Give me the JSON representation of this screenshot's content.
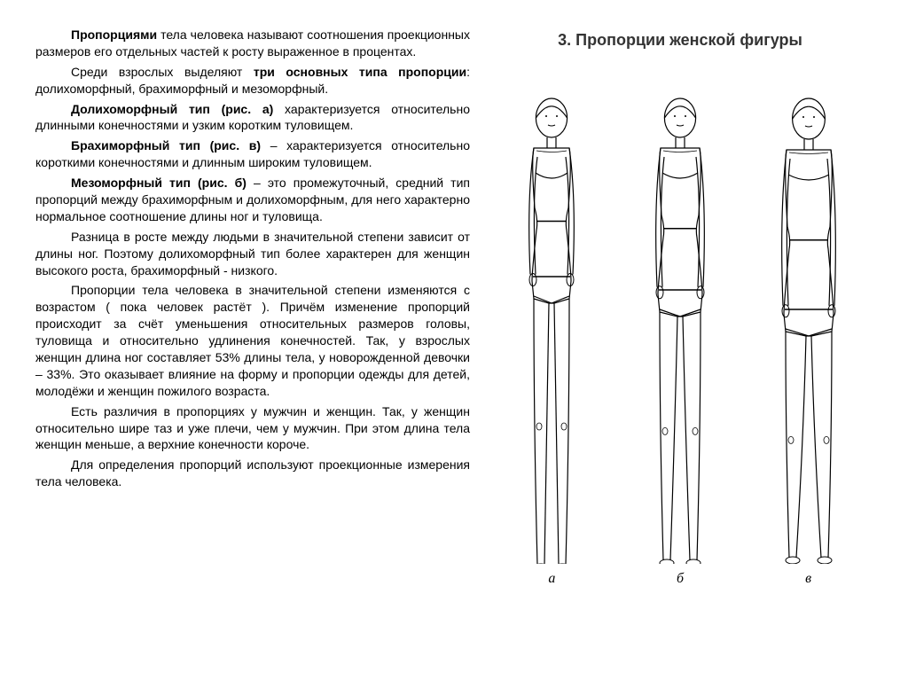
{
  "heading": "3. Пропорции женской фигуры",
  "paragraphs": [
    {
      "prefix_bold": "Пропорциями",
      "rest": " тела человека называют соотношения проекционных размеров его отдельных частей к росту выраженное в процентах."
    },
    {
      "prefix_plain": "Среди взрослых выделяют ",
      "mid_bold": "три основных типа пропорции",
      "rest": ": долихоморфный, брахиморфный и мезоморфный."
    },
    {
      "prefix_bold": "Долихоморфный тип (рис. а)",
      "rest": " характеризуется относительно длинными конечностями и узким коротким туловищем."
    },
    {
      "prefix_bold": "Брахиморфный тип (рис. в)",
      "rest": " – характеризуется относительно короткими конечностями и длинным широким туловищем."
    },
    {
      "prefix_bold": "Мезоморфный тип (рис. б)",
      "rest": " – это промежуточный, средний тип пропорций между брахиморфным и долихоморфным, для него характерно нормальное соотношение длины ног и туловища."
    },
    {
      "rest": "Разница в росте между людьми в значительной степени зависит от длины ног. Поэтому долихоморфный тип более характерен для женщин высокого роста, брахиморфный - низкого."
    },
    {
      "rest": "Пропорции тела человека в значительной степени изменяются с возрастом ( пока человек растёт ). Причём изменение пропорций происходит за счёт уменьшения относительных размеров головы, туловища и относительно удлинения конечностей. Так, у взрослых женщин длина ног составляет 53% длины тела, у новорожденной девочки – 33%. Это оказывает влияние на форму и пропорции одежды для детей, молодёжи и женщин пожилого возраста."
    },
    {
      "rest": "Есть различия в пропорциях у мужчин и женщин. Так, у женщин относительно шире таз и уже плечи, чем у мужчин. При этом длина тела женщин меньше, а верхние конечности короче."
    },
    {
      "rest": "Для определения пропорций используют проекционные измерения тела человека."
    }
  ],
  "figures": [
    {
      "label": "а",
      "shoulder_w": 40,
      "waist_w": 30,
      "hip_w": 44,
      "torso_len": 150,
      "leg_len": 300,
      "head_r": 22
    },
    {
      "label": "б",
      "shoulder_w": 44,
      "waist_w": 34,
      "hip_w": 50,
      "torso_len": 165,
      "leg_len": 280,
      "head_r": 22
    },
    {
      "label": "в",
      "shoulder_w": 50,
      "waist_w": 40,
      "hip_w": 56,
      "torso_len": 185,
      "leg_len": 255,
      "head_r": 23
    }
  ],
  "colors": {
    "stroke": "#000000",
    "fill": "#ffffff",
    "bg": "#ffffff"
  }
}
